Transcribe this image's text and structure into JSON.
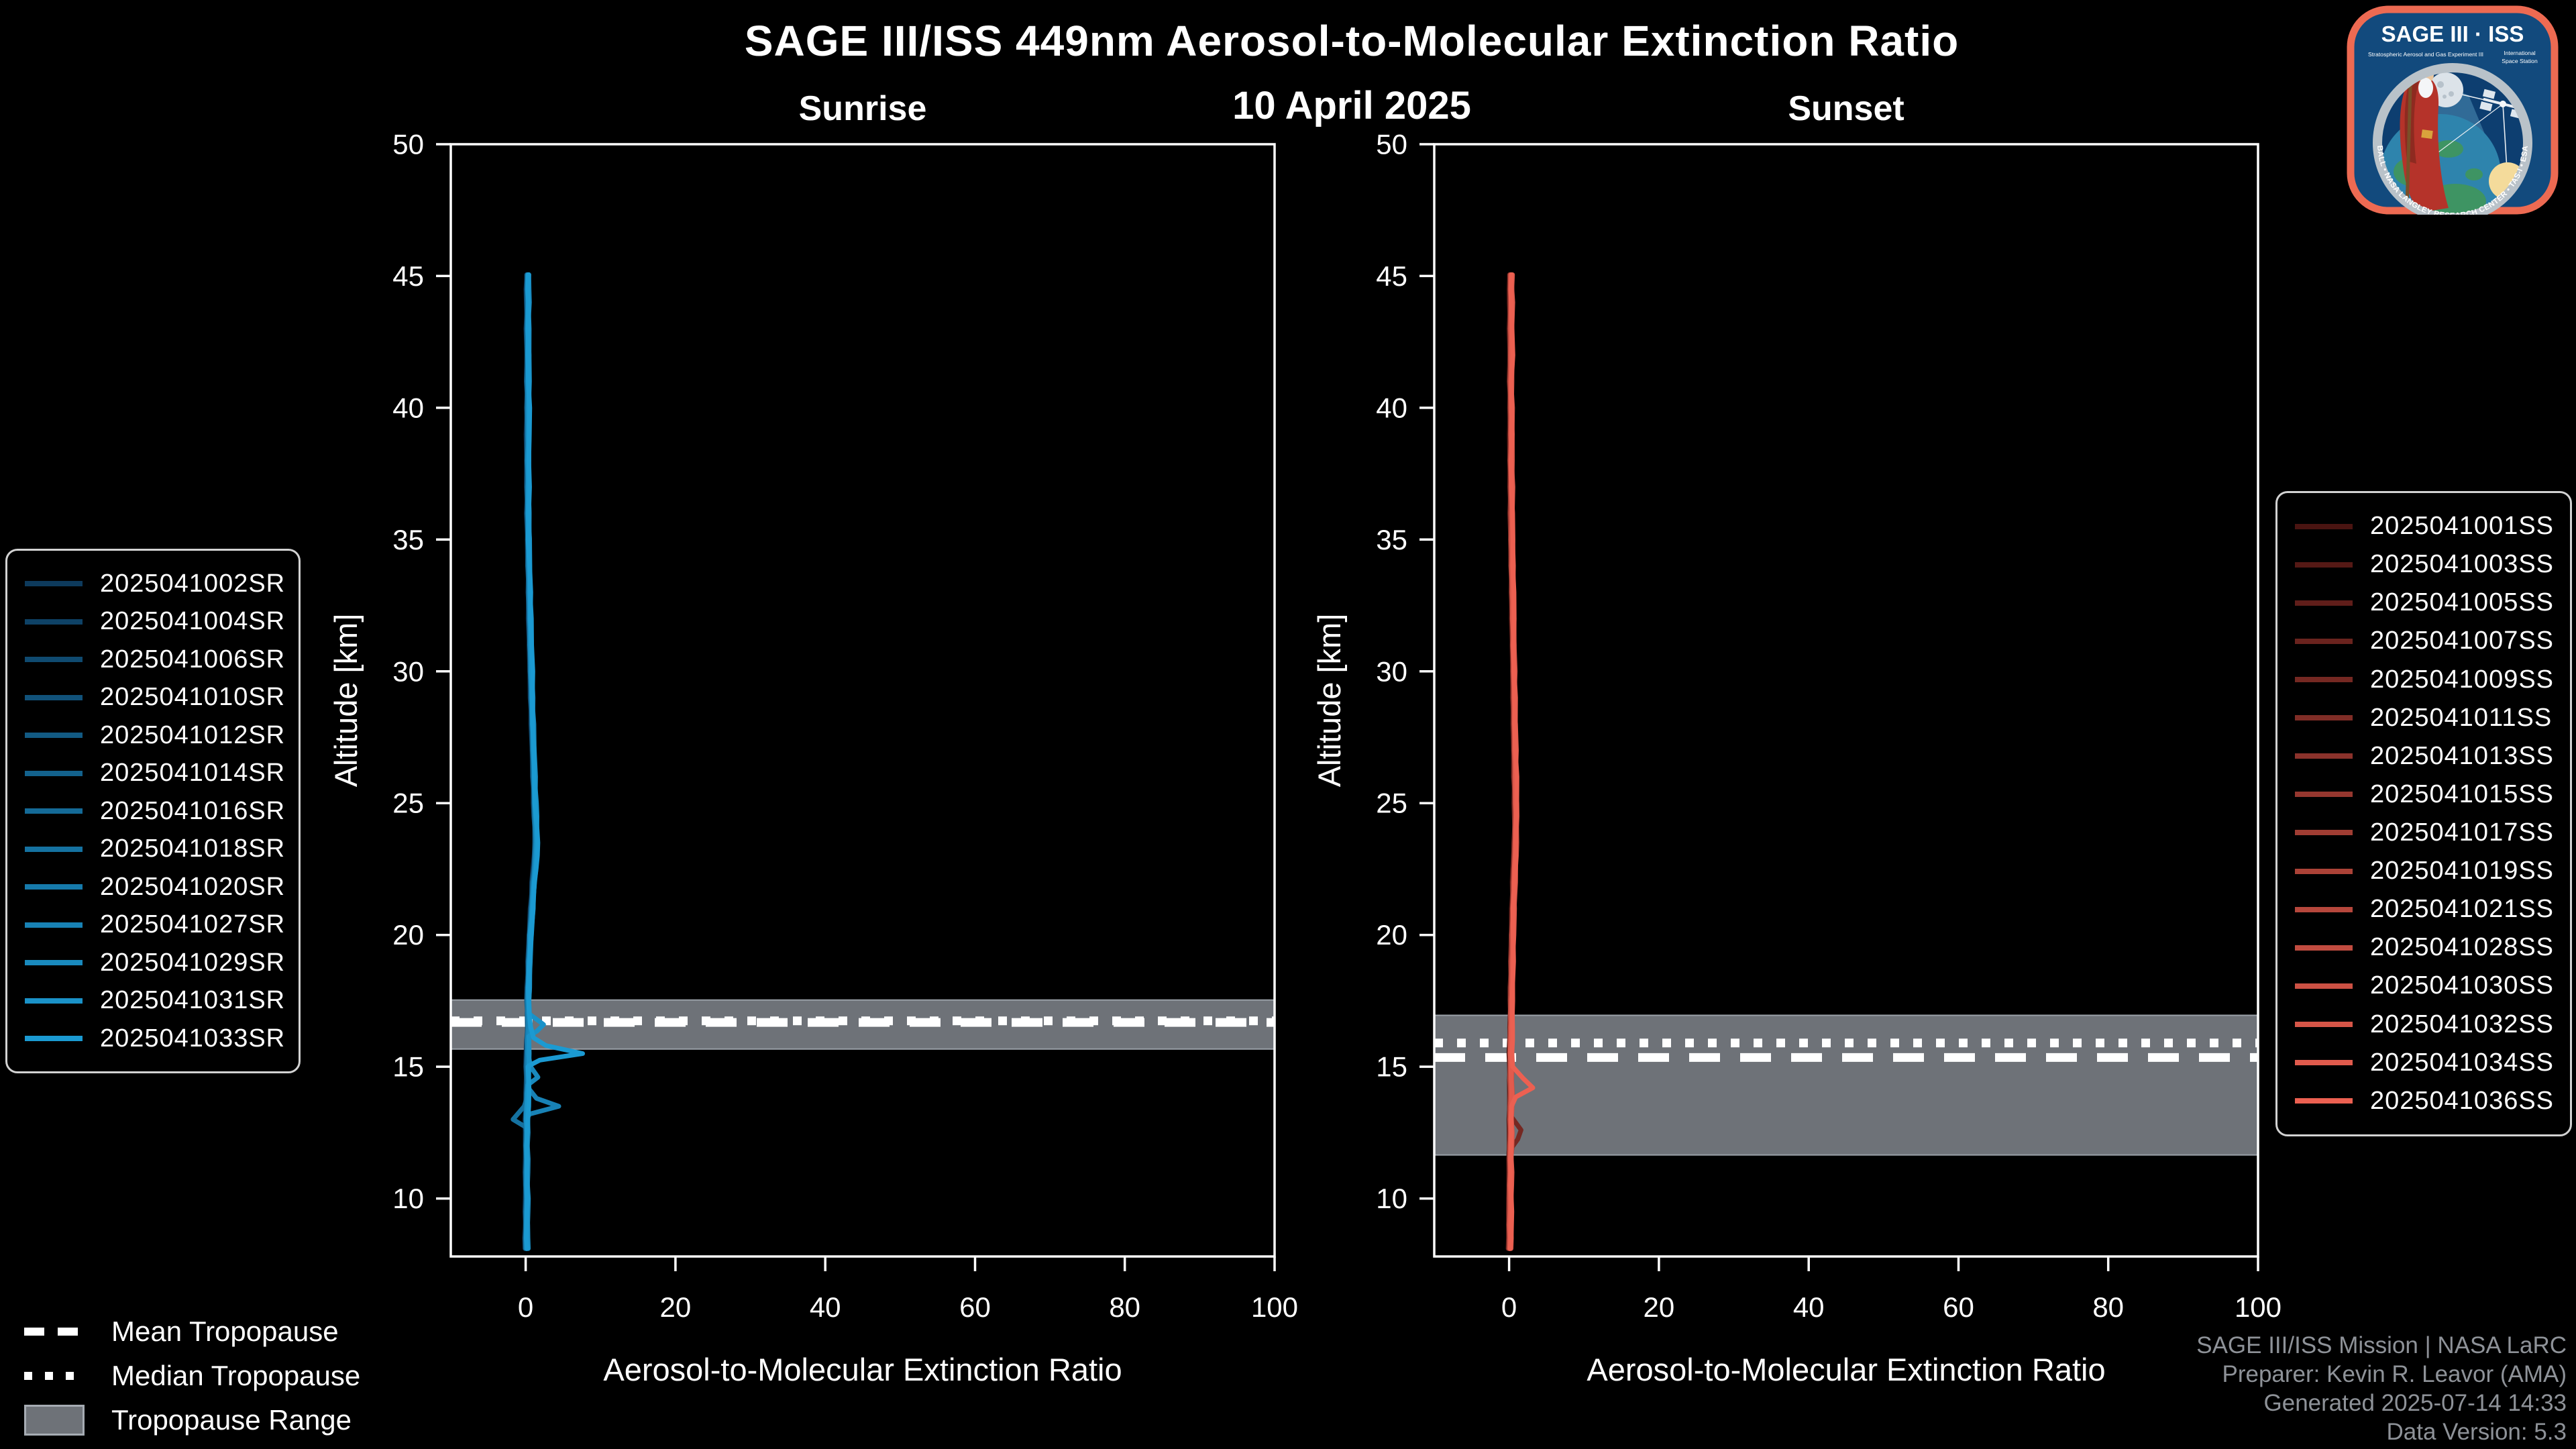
{
  "chart_data": {
    "type": "line",
    "title": "SAGE III/ISS 449nm Aerosol-to-Molecular Extinction Ratio",
    "subtitle": "10 April 2025",
    "style": {
      "background": "#000000",
      "frame_color": "#ffffff",
      "band_color": "#6e7278",
      "band_edge_color": "#9aa0a7",
      "tropopause_line_color": "#ffffff"
    },
    "panels": [
      {
        "key": "sunrise",
        "title": "Sunrise",
        "xlabel": "Aerosol-to-Molecular Extinction Ratio",
        "ylabel": "Altitude [km]",
        "xlim": [
          -10,
          100
        ],
        "ylim": [
          7.8,
          50
        ],
        "x_ticks": [
          0,
          20,
          40,
          60,
          80,
          100
        ],
        "y_ticks": [
          10,
          15,
          20,
          25,
          30,
          35,
          40,
          45,
          50
        ],
        "series_color_start": "#0d3a5c",
        "series_color_end": "#1b9ad2",
        "series": [
          "2025041002SR",
          "2025041004SR",
          "2025041006SR",
          "2025041010SR",
          "2025041012SR",
          "2025041014SR",
          "2025041016SR",
          "2025041018SR",
          "2025041020SR",
          "2025041027SR",
          "2025041029SR",
          "2025041031SR",
          "2025041033SR"
        ],
        "tropopause": {
          "range_km": [
            15.67,
            17.53
          ],
          "mean_km": 16.68,
          "median_km": 16.74
        },
        "profile_alt_km": [
          45.05,
          44.5,
          44,
          43,
          42,
          41,
          40,
          39,
          38,
          37,
          36,
          35,
          34,
          33,
          32,
          31,
          30,
          29,
          28,
          27,
          26,
          25,
          24.5,
          24,
          23.5,
          23,
          22.5,
          22,
          21,
          20,
          19,
          18,
          17.5,
          17,
          16.5,
          16,
          15.5,
          15,
          14.5,
          14,
          13.5,
          13,
          12.5,
          12,
          11.5,
          11,
          10.5,
          10,
          9.5,
          9,
          8.5,
          8.1
        ],
        "profile_ratio": [
          0.3,
          0.25,
          0.3,
          0.25,
          0.3,
          0.28,
          0.3,
          0.32,
          0.3,
          0.33,
          0.32,
          0.38,
          0.42,
          0.48,
          0.55,
          0.62,
          0.7,
          0.8,
          0.9,
          1.0,
          1.1,
          1.2,
          1.28,
          1.33,
          1.38,
          1.33,
          1.22,
          1.05,
          0.85,
          0.62,
          0.48,
          0.36,
          0.3,
          0.33,
          0.4,
          0.3,
          0.27,
          0.2,
          0.24,
          0.2,
          0.16,
          0.1,
          0.15,
          0.1,
          0.14,
          0.1,
          0.1,
          0.14,
          0.1,
          0.1,
          0.06,
          0.1
        ],
        "anomalies": [
          {
            "series_index": 12,
            "alt_km": [
              16.5,
              16.1,
              15.8,
              15.5,
              15.25,
              15.05
            ],
            "ratio": [
              0.5,
              0.9,
              2.6,
              7.5,
              1.8,
              0.4
            ]
          },
          {
            "series_index": 11,
            "alt_km": [
              17.0,
              16.6,
              16.35,
              16.15
            ],
            "ratio": [
              0.4,
              2.3,
              1.4,
              0.3
            ]
          },
          {
            "series_index": 10,
            "alt_km": [
              15.0,
              14.6,
              14.3
            ],
            "ratio": [
              0.7,
              1.7,
              0.3
            ]
          },
          {
            "series_index": 9,
            "alt_km": [
              14.15,
              13.8,
              13.5,
              13.2
            ],
            "ratio": [
              0.4,
              1.4,
              4.4,
              0.5
            ]
          },
          {
            "series_index": 7,
            "alt_km": [
              13.5,
              13.0,
              12.7
            ],
            "ratio": [
              -0.3,
              -1.7,
              0.1
            ]
          }
        ]
      },
      {
        "key": "sunset",
        "title": "Sunset",
        "xlabel": "Aerosol-to-Molecular Extinction Ratio",
        "ylabel": "Altitude [km]",
        "xlim": [
          -10,
          100
        ],
        "ylim": [
          7.8,
          50
        ],
        "x_ticks": [
          0,
          20,
          40,
          60,
          80,
          100
        ],
        "y_ticks": [
          10,
          15,
          20,
          25,
          30,
          35,
          40,
          45,
          50
        ],
        "series_color_start": "#4a1411",
        "series_color_end": "#ec6051",
        "series": [
          "2025041001SS",
          "2025041003SS",
          "2025041005SS",
          "2025041007SS",
          "2025041009SS",
          "2025041011SS",
          "2025041013SS",
          "2025041015SS",
          "2025041017SS",
          "2025041019SS",
          "2025041021SS",
          "2025041028SS",
          "2025041030SS",
          "2025041032SS",
          "2025041034SS",
          "2025041036SS"
        ],
        "tropopause": {
          "range_km": [
            11.65,
            16.95
          ],
          "mean_km": 15.35,
          "median_km": 15.9
        },
        "profile_alt_km": [
          45.05,
          44.5,
          44,
          43,
          42,
          41,
          40,
          39,
          38,
          37,
          36,
          35,
          34,
          33,
          32,
          31,
          30,
          29,
          28,
          27,
          26,
          25,
          24.5,
          24,
          23.5,
          23,
          22.5,
          22,
          21,
          20,
          19,
          18,
          17.5,
          17,
          16.5,
          16,
          15.5,
          15,
          14.5,
          14,
          13.5,
          13,
          12.5,
          12,
          11.5,
          11,
          10.5,
          10,
          9.5,
          9,
          8.5,
          8.1
        ],
        "profile_ratio": [
          0.22,
          0.2,
          0.24,
          0.2,
          0.25,
          0.2,
          0.26,
          0.28,
          0.25,
          0.3,
          0.3,
          0.34,
          0.38,
          0.44,
          0.5,
          0.55,
          0.6,
          0.64,
          0.68,
          0.73,
          0.78,
          0.84,
          0.88,
          0.86,
          0.82,
          0.78,
          0.72,
          0.65,
          0.55,
          0.45,
          0.38,
          0.32,
          0.3,
          0.28,
          0.26,
          0.24,
          0.2,
          0.24,
          0.2,
          0.24,
          0.2,
          0.16,
          0.2,
          0.15,
          0.12,
          0.15,
          0.1,
          0.1,
          0.1,
          0.06,
          0.1,
          0.06
        ],
        "anomalies": [
          {
            "series_index": 15,
            "alt_km": [
              15.0,
              14.55,
              14.2,
              13.85,
              13.5
            ],
            "ratio": [
              0.4,
              1.9,
              3.2,
              0.9,
              0.3
            ]
          },
          {
            "series_index": 4,
            "alt_km": [
              13.1,
              12.6,
              12.25,
              11.95
            ],
            "ratio": [
              0.4,
              1.6,
              1.1,
              0.3
            ]
          }
        ]
      }
    ]
  },
  "tropopause_legend": [
    {
      "label": "Mean Tropopause",
      "swatch": "dashed"
    },
    {
      "label": "Median Tropopause",
      "swatch": "dotted"
    },
    {
      "label": "Tropopause Range",
      "swatch": "range"
    }
  ],
  "footer": {
    "lines": [
      "SAGE III/ISS Mission | NASA LaRC",
      "Preparer: Kevin R. Leavor (AMA)",
      "Generated 2025-07-14 14:33",
      "Data Version: 5.3"
    ]
  },
  "logo": {
    "title": "SAGE III · ISS",
    "subtitle": "Stratospheric Aerosol and Gas Experiment III",
    "intl_line1": "International",
    "intl_line2": "Space Station",
    "arc_text": "BALL • NASA LANGLEY RESEARCH CENTER • TAS-I • ESA",
    "border_color": "#ed6a52",
    "field_color": "#124a7d"
  }
}
